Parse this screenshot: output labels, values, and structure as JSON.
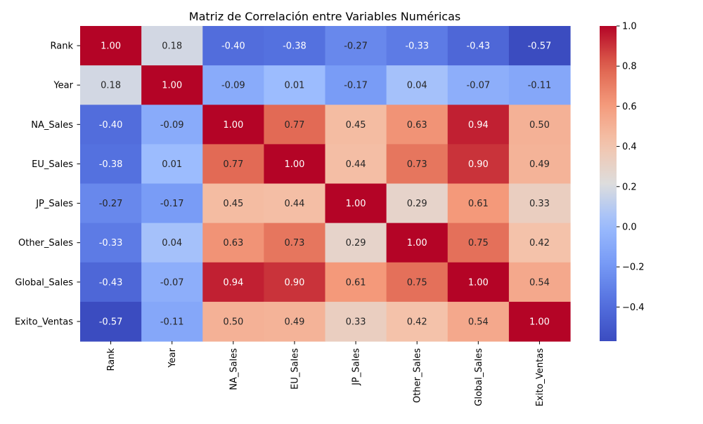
{
  "chart_data": {
    "type": "heatmap",
    "title": "Matriz de Correlación entre Variables Numéricas",
    "xlabel": "",
    "ylabel": "",
    "x_labels": [
      "Rank",
      "Year",
      "NA_Sales",
      "EU_Sales",
      "JP_Sales",
      "Other_Sales",
      "Global_Sales",
      "Exito_Ventas"
    ],
    "y_labels": [
      "Rank",
      "Year",
      "NA_Sales",
      "EU_Sales",
      "JP_Sales",
      "Other_Sales",
      "Global_Sales",
      "Exito_Ventas"
    ],
    "values": [
      [
        1.0,
        0.18,
        -0.4,
        -0.38,
        -0.27,
        -0.33,
        -0.43,
        -0.57
      ],
      [
        0.18,
        1.0,
        -0.09,
        0.01,
        -0.17,
        0.04,
        -0.07,
        -0.11
      ],
      [
        -0.4,
        -0.09,
        1.0,
        0.77,
        0.45,
        0.63,
        0.94,
        0.5
      ],
      [
        -0.38,
        0.01,
        0.77,
        1.0,
        0.44,
        0.73,
        0.9,
        0.49
      ],
      [
        -0.27,
        -0.17,
        0.45,
        0.44,
        1.0,
        0.29,
        0.61,
        0.33
      ],
      [
        -0.33,
        0.04,
        0.63,
        0.73,
        0.29,
        1.0,
        0.75,
        0.42
      ],
      [
        -0.43,
        -0.07,
        0.94,
        0.9,
        0.61,
        0.75,
        1.0,
        0.54
      ],
      [
        -0.57,
        -0.11,
        0.5,
        0.49,
        0.33,
        0.42,
        0.54,
        1.0
      ]
    ],
    "value_format": "0.00",
    "colormap": "coolwarm",
    "vmin": -0.57,
    "vmax": 1.0,
    "colorbar_ticks": [
      1.0,
      0.8,
      0.6,
      0.4,
      0.2,
      0.0,
      -0.2,
      -0.4
    ],
    "colorbar_tick_labels": [
      "1.0",
      "0.8",
      "0.6",
      "0.4",
      "0.2",
      "0.0",
      "−0.2",
      "−0.4"
    ],
    "grid": false,
    "legend": "colorbar-right"
  }
}
